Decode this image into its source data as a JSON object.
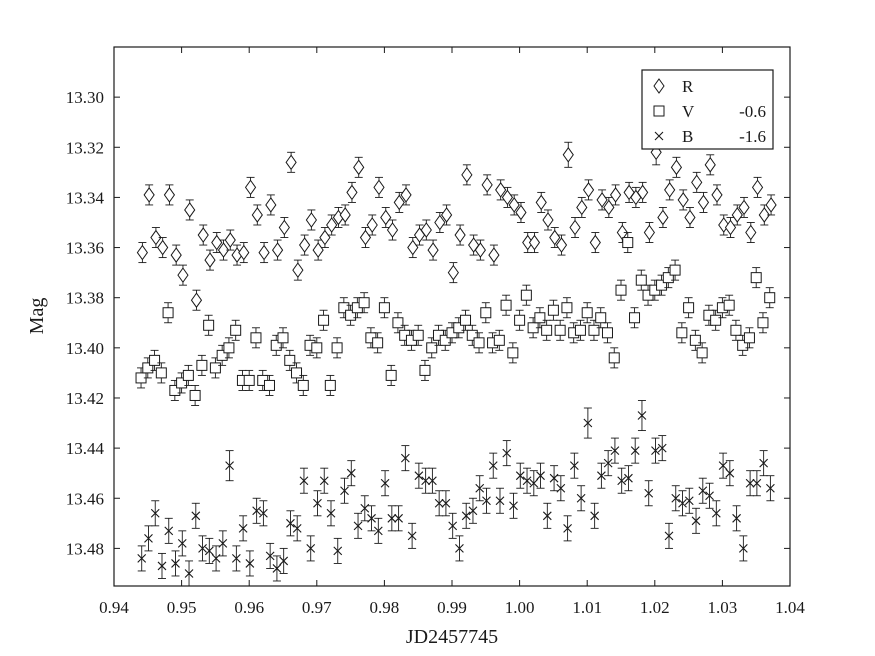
{
  "chart_data": {
    "type": "scatter",
    "xlabel": "JD2457745",
    "ylabel": "Mag",
    "xlim": [
      0.94,
      1.04
    ],
    "ylim": [
      13.495,
      13.28
    ],
    "y_inverted": true,
    "grid": false,
    "legend_placement": "top-right",
    "error_bar_half_width": 0.006,
    "x_ticks": [
      0.94,
      0.95,
      0.96,
      0.97,
      0.98,
      0.99,
      1.0,
      1.01,
      1.02,
      1.03,
      1.04
    ],
    "x_tick_labels": [
      "0.94",
      "0.95",
      "0.96",
      "0.97",
      "0.98",
      "0.99",
      "1.00",
      "1.01",
      "1.02",
      "1.03",
      "1.04"
    ],
    "y_ticks": [
      13.3,
      13.32,
      13.34,
      13.36,
      13.38,
      13.4,
      13.42,
      13.44,
      13.46,
      13.48
    ],
    "y_tick_labels": [
      "13.30",
      "13.32",
      "13.34",
      "13.36",
      "13.38",
      "13.40",
      "13.42",
      "13.44",
      "13.46",
      "13.48"
    ],
    "series": [
      {
        "name": "R",
        "offset": "",
        "marker": "diamond",
        "x": [
          0.9442,
          0.9452,
          0.9462,
          0.9472,
          0.9482,
          0.9492,
          0.9502,
          0.9512,
          0.9522,
          0.9532,
          0.9542,
          0.9552,
          0.9562,
          0.9572,
          0.9582,
          0.9592,
          0.9602,
          0.9612,
          0.9622,
          0.9632,
          0.9642,
          0.9652,
          0.9662,
          0.9672,
          0.9682,
          0.9692,
          0.9702,
          0.9712,
          0.9722,
          0.9732,
          0.9742,
          0.9752,
          0.9762,
          0.9772,
          0.9782,
          0.9792,
          0.9802,
          0.9812,
          0.9822,
          0.9832,
          0.9842,
          0.9852,
          0.9862,
          0.9872,
          0.9882,
          0.9892,
          0.9902,
          0.9912,
          0.9922,
          0.9932,
          0.9942,
          0.9952,
          0.9962,
          0.9972,
          0.9982,
          0.9992,
          1.0002,
          1.0012,
          1.0022,
          1.0032,
          1.0042,
          1.0052,
          1.0062,
          1.0072,
          1.0082,
          1.0092,
          1.0102,
          1.0112,
          1.0122,
          1.0132,
          1.0142,
          1.0152,
          1.0162,
          1.0172,
          1.0182,
          1.0192,
          1.0202,
          1.0212,
          1.0222,
          1.0232,
          1.0242,
          1.0252,
          1.0262,
          1.0272,
          1.0282,
          1.0292,
          1.0302,
          1.0312,
          1.0322,
          1.0332,
          1.0342,
          1.0352,
          1.0362,
          1.0372
        ],
        "y": [
          13.362,
          13.339,
          13.356,
          13.36,
          13.339,
          13.363,
          13.371,
          13.345,
          13.381,
          13.355,
          13.365,
          13.358,
          13.361,
          13.357,
          13.363,
          13.362,
          13.336,
          13.347,
          13.362,
          13.343,
          13.361,
          13.352,
          13.326,
          13.369,
          13.359,
          13.349,
          13.361,
          13.356,
          13.351,
          13.348,
          13.347,
          13.338,
          13.328,
          13.356,
          13.351,
          13.336,
          13.348,
          13.353,
          13.342,
          13.339,
          13.36,
          13.355,
          13.353,
          13.361,
          13.35,
          13.347,
          13.37,
          13.355,
          13.331,
          13.359,
          13.361,
          13.335,
          13.363,
          13.337,
          13.34,
          13.343,
          13.346,
          13.358,
          13.358,
          13.342,
          13.349,
          13.356,
          13.359,
          13.323,
          13.352,
          13.344,
          13.337,
          13.358,
          13.341,
          13.344,
          13.339,
          13.354,
          13.338,
          13.34,
          13.338,
          13.354,
          13.322,
          13.348,
          13.337,
          13.328,
          13.341,
          13.348,
          13.334,
          13.342,
          13.327,
          13.339,
          13.351,
          13.352,
          13.347,
          13.344,
          13.354,
          13.336,
          13.347,
          13.343
        ],
        "err": [
          0.004,
          0.004,
          0.004,
          0.004,
          0.004,
          0.004,
          0.004,
          0.004,
          0.004,
          0.004,
          0.004,
          0.004,
          0.004,
          0.004,
          0.004,
          0.004,
          0.004,
          0.004,
          0.004,
          0.004,
          0.004,
          0.004,
          0.004,
          0.004,
          0.004,
          0.004,
          0.004,
          0.004,
          0.004,
          0.004,
          0.004,
          0.004,
          0.004,
          0.004,
          0.004,
          0.004,
          0.004,
          0.004,
          0.004,
          0.004,
          0.004,
          0.004,
          0.004,
          0.004,
          0.004,
          0.004,
          0.004,
          0.004,
          0.004,
          0.004,
          0.004,
          0.004,
          0.004,
          0.004,
          0.004,
          0.004,
          0.004,
          0.004,
          0.004,
          0.004,
          0.004,
          0.004,
          0.004,
          0.005,
          0.004,
          0.004,
          0.004,
          0.004,
          0.004,
          0.004,
          0.004,
          0.004,
          0.004,
          0.004,
          0.004,
          0.004,
          0.005,
          0.004,
          0.004,
          0.004,
          0.004,
          0.004,
          0.004,
          0.004,
          0.004,
          0.004,
          0.004,
          0.004,
          0.004,
          0.004,
          0.004,
          0.004,
          0.004,
          0.004
        ]
      },
      {
        "name": "V",
        "offset": "-0.6",
        "marker": "square",
        "x": [
          0.944,
          0.945,
          0.946,
          0.947,
          0.948,
          0.949,
          0.95,
          0.951,
          0.952,
          0.953,
          0.954,
          0.955,
          0.956,
          0.957,
          0.958,
          0.959,
          0.96,
          0.961,
          0.962,
          0.963,
          0.964,
          0.965,
          0.966,
          0.967,
          0.968,
          0.969,
          0.97,
          0.971,
          0.972,
          0.973,
          0.974,
          0.975,
          0.976,
          0.977,
          0.978,
          0.979,
          0.98,
          0.981,
          0.982,
          0.983,
          0.984,
          0.985,
          0.986,
          0.987,
          0.988,
          0.989,
          0.99,
          0.991,
          0.992,
          0.993,
          0.994,
          0.995,
          0.996,
          0.997,
          0.998,
          0.999,
          1.0,
          1.001,
          1.002,
          1.003,
          1.004,
          1.005,
          1.006,
          1.007,
          1.008,
          1.009,
          1.01,
          1.011,
          1.012,
          1.013,
          1.014,
          1.015,
          1.016,
          1.017,
          1.018,
          1.019,
          1.02,
          1.021,
          1.022,
          1.023,
          1.024,
          1.025,
          1.026,
          1.027,
          1.028,
          1.029,
          1.03,
          1.031,
          1.032,
          1.033,
          1.034,
          1.035,
          1.036,
          1.037
        ],
        "y": [
          13.412,
          13.408,
          13.405,
          13.41,
          13.386,
          13.417,
          13.414,
          13.411,
          13.419,
          13.407,
          13.391,
          13.408,
          13.403,
          13.4,
          13.393,
          13.413,
          13.413,
          13.396,
          13.413,
          13.415,
          13.399,
          13.396,
          13.405,
          13.41,
          13.415,
          13.399,
          13.4,
          13.389,
          13.415,
          13.4,
          13.384,
          13.387,
          13.384,
          13.382,
          13.396,
          13.398,
          13.384,
          13.411,
          13.39,
          13.395,
          13.397,
          13.395,
          13.409,
          13.4,
          13.395,
          13.397,
          13.394,
          13.392,
          13.389,
          13.395,
          13.398,
          13.386,
          13.398,
          13.397,
          13.383,
          13.402,
          13.389,
          13.379,
          13.392,
          13.388,
          13.393,
          13.385,
          13.393,
          13.384,
          13.394,
          13.393,
          13.386,
          13.393,
          13.388,
          13.394,
          13.404,
          13.377,
          13.358,
          13.388,
          13.373,
          13.379,
          13.377,
          13.375,
          13.372,
          13.369,
          13.394,
          13.384,
          13.397,
          13.402,
          13.387,
          13.389,
          13.384,
          13.383,
          13.393,
          13.399,
          13.396,
          13.372,
          13.39,
          13.38
        ],
        "err": [
          0.004,
          0.004,
          0.004,
          0.004,
          0.004,
          0.004,
          0.004,
          0.004,
          0.004,
          0.004,
          0.004,
          0.004,
          0.004,
          0.004,
          0.004,
          0.004,
          0.004,
          0.004,
          0.004,
          0.004,
          0.004,
          0.004,
          0.004,
          0.004,
          0.004,
          0.004,
          0.004,
          0.004,
          0.004,
          0.004,
          0.004,
          0.004,
          0.004,
          0.004,
          0.004,
          0.004,
          0.004,
          0.004,
          0.004,
          0.004,
          0.004,
          0.004,
          0.004,
          0.004,
          0.004,
          0.004,
          0.004,
          0.004,
          0.004,
          0.004,
          0.004,
          0.004,
          0.004,
          0.004,
          0.004,
          0.004,
          0.004,
          0.004,
          0.004,
          0.004,
          0.004,
          0.004,
          0.004,
          0.004,
          0.004,
          0.004,
          0.004,
          0.004,
          0.004,
          0.004,
          0.004,
          0.004,
          0.004,
          0.004,
          0.004,
          0.004,
          0.004,
          0.004,
          0.004,
          0.004,
          0.004,
          0.004,
          0.004,
          0.004,
          0.004,
          0.004,
          0.004,
          0.004,
          0.004,
          0.004,
          0.004,
          0.004,
          0.004,
          0.004
        ]
      },
      {
        "name": "B",
        "offset": "-1.6",
        "marker": "x",
        "x": [
          0.9441,
          0.9451,
          0.9461,
          0.9471,
          0.9481,
          0.9491,
          0.9501,
          0.9511,
          0.9521,
          0.9531,
          0.9541,
          0.9551,
          0.9561,
          0.9571,
          0.9581,
          0.9591,
          0.9601,
          0.9611,
          0.9621,
          0.9631,
          0.9641,
          0.9651,
          0.9661,
          0.9671,
          0.9681,
          0.9691,
          0.9701,
          0.9711,
          0.9721,
          0.9731,
          0.9741,
          0.9751,
          0.9761,
          0.9771,
          0.9781,
          0.9791,
          0.9801,
          0.9811,
          0.9821,
          0.9831,
          0.9841,
          0.9851,
          0.9861,
          0.9871,
          0.9881,
          0.9891,
          0.9901,
          0.9911,
          0.9921,
          0.9931,
          0.9941,
          0.9951,
          0.9961,
          0.9971,
          0.9981,
          0.9991,
          1.0001,
          1.0011,
          1.0021,
          1.0031,
          1.0041,
          1.0051,
          1.0061,
          1.0071,
          1.0081,
          1.0091,
          1.0101,
          1.0111,
          1.0121,
          1.0131,
          1.0141,
          1.0151,
          1.0161,
          1.0171,
          1.0181,
          1.0191,
          1.0201,
          1.0211,
          1.0221,
          1.0231,
          1.0241,
          1.0251,
          1.0261,
          1.0271,
          1.0281,
          1.0291,
          1.0301,
          1.0311,
          1.0321,
          1.0331,
          1.0341,
          1.0351,
          1.0361,
          1.0371
        ],
        "y": [
          13.484,
          13.476,
          13.466,
          13.487,
          13.473,
          13.486,
          13.478,
          13.49,
          13.467,
          13.48,
          13.481,
          13.484,
          13.478,
          13.447,
          13.484,
          13.472,
          13.486,
          13.465,
          13.466,
          13.483,
          13.488,
          13.485,
          13.47,
          13.472,
          13.453,
          13.48,
          13.462,
          13.453,
          13.466,
          13.481,
          13.457,
          13.45,
          13.471,
          13.464,
          13.468,
          13.473,
          13.454,
          13.468,
          13.468,
          13.444,
          13.475,
          13.451,
          13.453,
          13.453,
          13.462,
          13.462,
          13.471,
          13.48,
          13.467,
          13.465,
          13.456,
          13.461,
          13.447,
          13.461,
          13.442,
          13.463,
          13.451,
          13.453,
          13.454,
          13.451,
          13.467,
          13.452,
          13.456,
          13.472,
          13.447,
          13.46,
          13.43,
          13.467,
          13.451,
          13.446,
          13.441,
          13.453,
          13.452,
          13.441,
          13.427,
          13.458,
          13.441,
          13.44,
          13.475,
          13.46,
          13.462,
          13.461,
          13.469,
          13.457,
          13.459,
          13.466,
          13.447,
          13.45,
          13.468,
          13.48,
          13.454,
          13.454,
          13.446,
          13.456
        ],
        "err": [
          0.005,
          0.005,
          0.005,
          0.005,
          0.005,
          0.005,
          0.005,
          0.005,
          0.005,
          0.005,
          0.005,
          0.005,
          0.005,
          0.006,
          0.005,
          0.005,
          0.005,
          0.005,
          0.005,
          0.005,
          0.005,
          0.005,
          0.005,
          0.005,
          0.005,
          0.005,
          0.005,
          0.005,
          0.005,
          0.005,
          0.005,
          0.005,
          0.005,
          0.005,
          0.005,
          0.005,
          0.005,
          0.005,
          0.005,
          0.005,
          0.005,
          0.005,
          0.005,
          0.005,
          0.005,
          0.005,
          0.005,
          0.005,
          0.005,
          0.005,
          0.005,
          0.005,
          0.005,
          0.005,
          0.005,
          0.005,
          0.005,
          0.005,
          0.005,
          0.005,
          0.005,
          0.005,
          0.005,
          0.005,
          0.005,
          0.005,
          0.006,
          0.005,
          0.005,
          0.005,
          0.005,
          0.005,
          0.005,
          0.005,
          0.006,
          0.005,
          0.005,
          0.005,
          0.005,
          0.005,
          0.005,
          0.005,
          0.005,
          0.005,
          0.005,
          0.005,
          0.005,
          0.005,
          0.005,
          0.005,
          0.005,
          0.005,
          0.005,
          0.005
        ]
      }
    ]
  },
  "colors": {
    "background": "#ffffff",
    "axes": "#1a1a1a",
    "markers": "#1a1a1a"
  }
}
